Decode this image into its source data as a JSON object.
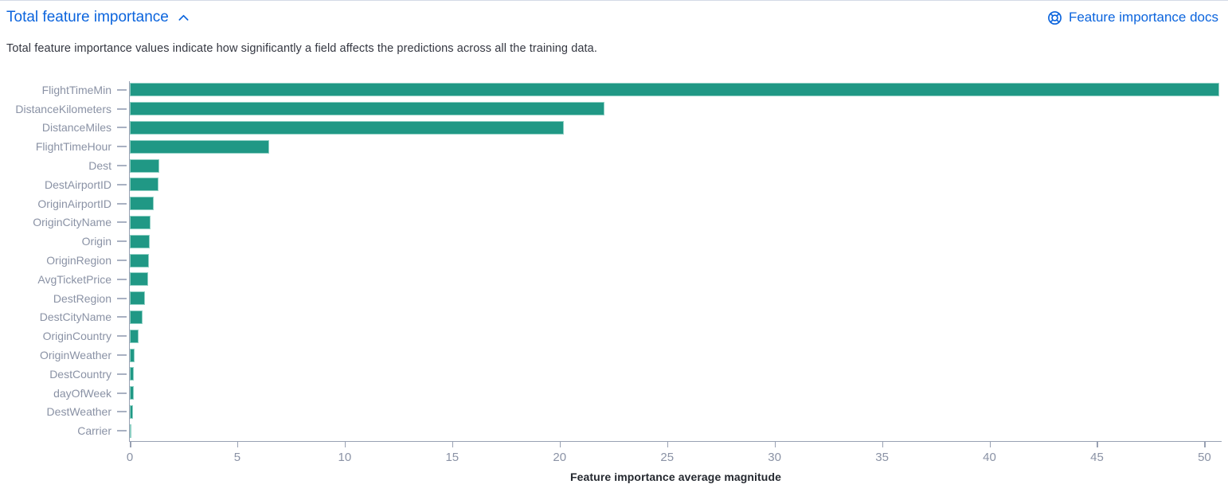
{
  "header": {
    "title": "Total feature importance",
    "collapse_icon": "chevron-up-icon",
    "docs_link": "Feature importance docs",
    "docs_icon": "help-icon",
    "link_color": "#0b64dd"
  },
  "description": "Total feature importance values indicate how significantly a field affects the predictions across all the training data.",
  "chart_data": {
    "type": "bar",
    "orientation": "horizontal",
    "title": "",
    "xlabel": "Feature importance average magnitude",
    "ylabel": "",
    "categories": [
      "FlightTimeMin",
      "DistanceKilometers",
      "DistanceMiles",
      "FlightTimeHour",
      "Dest",
      "DestAirportID",
      "OriginAirportID",
      "OriginCityName",
      "Origin",
      "OriginRegion",
      "AvgTicketPrice",
      "DestRegion",
      "DestCityName",
      "OriginCountry",
      "OriginWeather",
      "DestCountry",
      "dayOfWeek",
      "DestWeather",
      "Carrier"
    ],
    "values": [
      50.7,
      22.1,
      20.2,
      6.5,
      1.37,
      1.33,
      1.1,
      0.96,
      0.93,
      0.89,
      0.85,
      0.7,
      0.6,
      0.42,
      0.22,
      0.19,
      0.19,
      0.15,
      0.07
    ],
    "xticks": [
      0,
      5,
      10,
      15,
      20,
      25,
      30,
      35,
      40,
      45,
      50
    ],
    "xlim": [
      0,
      50.8
    ],
    "bar_color": "#209885",
    "axis_color": "#98a1b3",
    "label_color": "#8a92a5",
    "grid": false,
    "legend": false
  }
}
